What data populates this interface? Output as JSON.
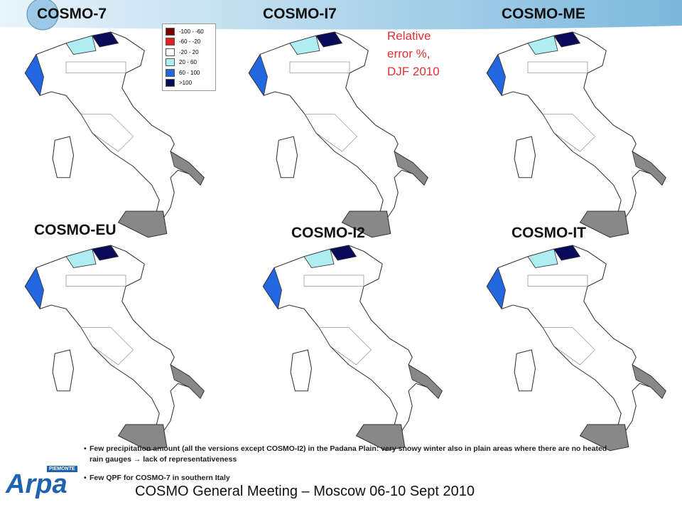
{
  "panels": [
    {
      "title": "COSMO-7"
    },
    {
      "title": "COSMO-I7"
    },
    {
      "title": "COSMO-ME"
    },
    {
      "title": "COSMO-EU"
    },
    {
      "title": "COSMO-I2"
    },
    {
      "title": "COSMO-IT"
    }
  ],
  "legend": {
    "entries": [
      {
        "label": "-100 - -60",
        "color": "#7a0000"
      },
      {
        "label": "-60 - -20",
        "color": "#e32020"
      },
      {
        "label": "-20 - 20",
        "color": "#ffffff"
      },
      {
        "label": "20 - 60",
        "color": "#aeeef2"
      },
      {
        "label": "60 - 100",
        "color": "#2266e0"
      },
      {
        "label": ">100",
        "color": "#0a0a5a"
      }
    ]
  },
  "annotation": [
    "Relative",
    "error %,",
    "DJF 2010"
  ],
  "notes": [
    "Few precipitation amount (all the versions except COSMO-I2) in the Padana Plain: very snowy winter also in plain areas where there are no heated rain gauges → lack of representativeness",
    "Few QPF for COSMO-7 in southern Italy"
  ],
  "footer": "COSMO General Meeting – Moscow 06-10 Sept 2010",
  "logo": {
    "name": "Arpa",
    "region": "PIEMONTE"
  }
}
